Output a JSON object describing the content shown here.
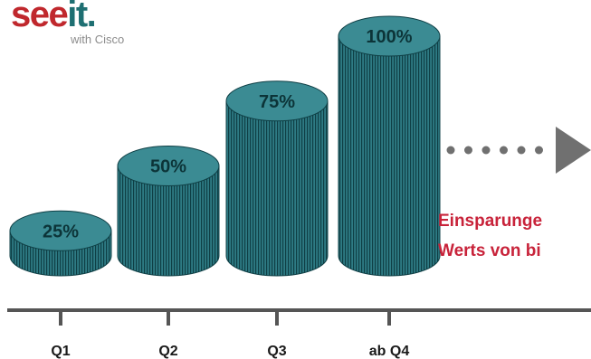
{
  "logo": {
    "main_a": "see",
    "main_b": "it.",
    "sub": "with Cisco"
  },
  "headline": {
    "line1": "Einsparunge",
    "line2": "Werts von bi"
  },
  "colors": {
    "coin_top": "#3b8b93",
    "coin_body": "#2e7b84",
    "coin_stripe": "#0f3f45",
    "axis": "#555555",
    "arrow": "#707070",
    "headline": "#c8233a"
  },
  "chart_data": {
    "type": "bar",
    "categories": [
      "Q1",
      "Q2",
      "Q3",
      "ab Q4"
    ],
    "values": [
      25,
      50,
      75,
      100
    ],
    "labels": [
      "25%",
      "50%",
      "75%",
      "100%"
    ],
    "ylim": [
      0,
      100
    ],
    "xlabel": "",
    "ylabel": "",
    "grid": false,
    "legend": "none",
    "arrow_dots": 6
  }
}
